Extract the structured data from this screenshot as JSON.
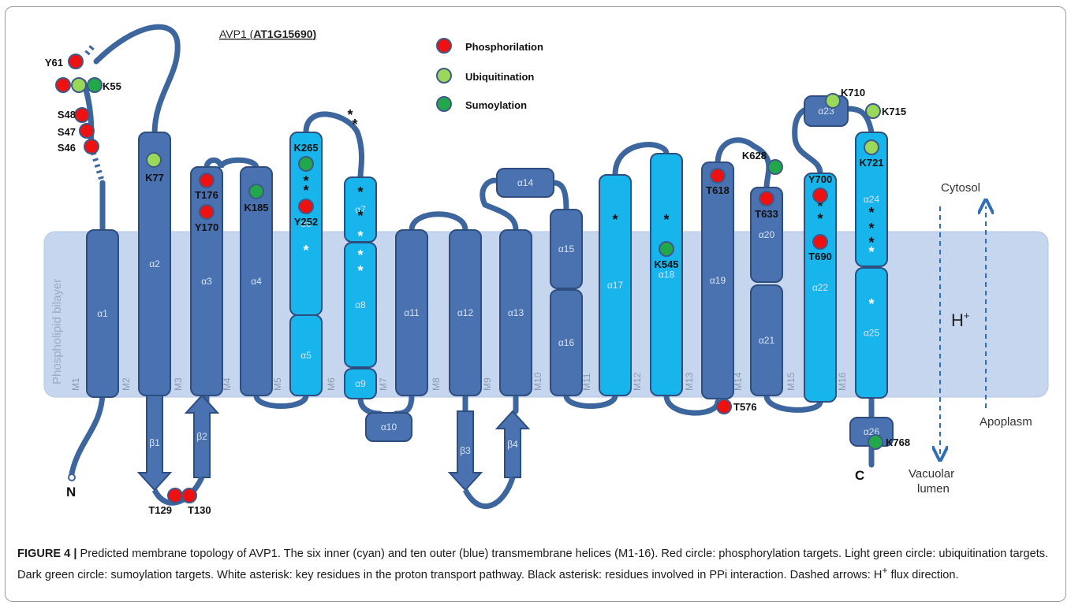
{
  "title_prefix": "AVP1 (",
  "title_id": "AT1G15690",
  "title_suffix": ")",
  "legend": [
    {
      "label": "Phosphorilation",
      "color": "#ee1111"
    },
    {
      "label": "Ubiquitination",
      "color": "#9ad85a"
    },
    {
      "label": "Sumoylation",
      "color": "#22a84a"
    }
  ],
  "membrane_label": "Phospholipid bilayer",
  "cytosol_label": "Cytosol",
  "h_label": "H",
  "h_sup": "+",
  "apoplasm_label": "Apoplasm",
  "vacuolar_label_1": "Vacuolar",
  "vacuolar_label_2": "lumen",
  "n_term": "N",
  "c_term": "C",
  "tm_labels": [
    "M1",
    "M2",
    "M3",
    "M4",
    "M5",
    "M6",
    "M7",
    "M8",
    "M9",
    "M10",
    "M11",
    "M12",
    "M13",
    "M14",
    "M15",
    "M16"
  ],
  "helices": [
    "α1",
    "α2",
    "α3",
    "α4",
    "α5",
    "α6",
    "α7",
    "α8",
    "α9",
    "α10",
    "α11",
    "α12",
    "α13",
    "α14",
    "α15",
    "α16",
    "α17",
    "α18",
    "α19",
    "α20",
    "α21",
    "α22",
    "α23",
    "α24",
    "α25",
    "α26"
  ],
  "strands": [
    "β1",
    "β2",
    "β3",
    "β4"
  ],
  "residues": [
    "Y61",
    "K55",
    "S48",
    "S47",
    "S46",
    "K77",
    "T176",
    "Y170",
    "K185",
    "K265",
    "Y252",
    "T129",
    "T130",
    "K628",
    "T618",
    "T633",
    "T576",
    "Y700",
    "T690",
    "K710",
    "K715",
    "K721",
    "K768",
    "K545"
  ],
  "caption": {
    "fig": "FIGURE 4 |",
    "text": " Predicted membrane topology of AVP1. The six inner (cyan) and ten outer (blue) transmembrane helices (M1-16). Red circle: phosphorylation targets. Light green circle: ubiquitination targets. Dark green circle: sumoylation targets. White asterisk: key residues in the proton transport pathway. Black asterisk: residues involved in PPi interaction. Dashed arrows: H",
    "sup": "+",
    "text2": " flux direction."
  }
}
